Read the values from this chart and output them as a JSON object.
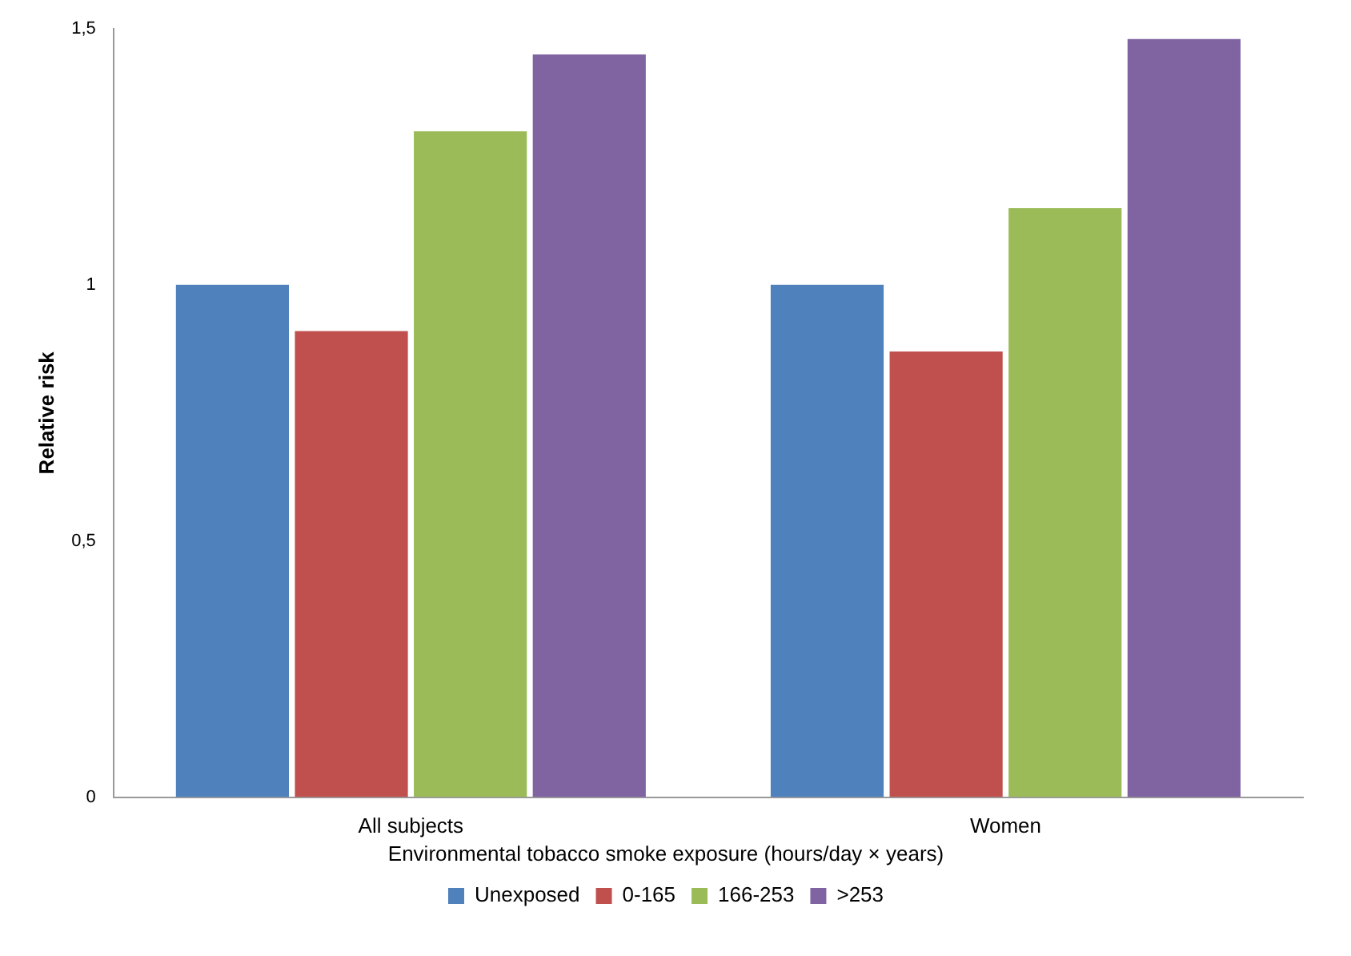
{
  "chart_data": {
    "type": "bar",
    "ylabel": "Relative risk",
    "legend_title": "Environmental tobacco smoke exposure (hours/day × years)",
    "categories": [
      "All subjects",
      "Women"
    ],
    "series": [
      {
        "name": "Unexposed",
        "color": "#4f81bd",
        "values": [
          1.0,
          1.0
        ]
      },
      {
        "name": "0-165",
        "color": "#c0504d",
        "values": [
          0.91,
          0.87
        ]
      },
      {
        "name": "166-253",
        "color": "#9bbb59",
        "values": [
          1.3,
          1.15
        ]
      },
      {
        "name": ">253",
        "color": "#8064a2",
        "values": [
          1.45,
          1.48
        ]
      }
    ],
    "ylim": [
      0,
      1.5
    ],
    "yticks": [
      0,
      {
        "value": 0.5,
        "label": "0,5"
      },
      1,
      {
        "value": 1.5,
        "label": "1,5"
      }
    ],
    "grid": false,
    "legend": "bottom"
  }
}
